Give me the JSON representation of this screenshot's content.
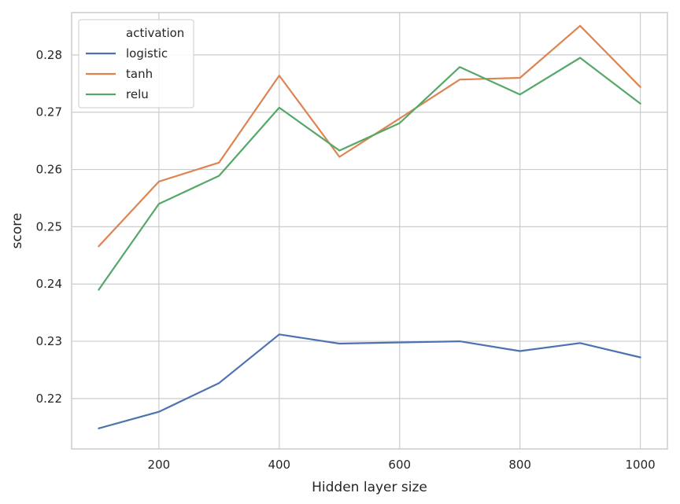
{
  "chart_data": {
    "type": "line",
    "xlabel": "Hidden layer size",
    "ylabel": "score",
    "xlim": [
      55,
      1045
    ],
    "ylim": [
      0.2112,
      0.2874
    ],
    "xticks": [
      200,
      400,
      600,
      800,
      1000
    ],
    "yticks": [
      0.22,
      0.23,
      0.24,
      0.25,
      0.26,
      0.27,
      0.28
    ],
    "grid": true,
    "legend_title": "activation",
    "legend_position": "top-left",
    "x": [
      100,
      200,
      300,
      400,
      500,
      600,
      700,
      800,
      900,
      1000
    ],
    "series": [
      {
        "name": "logistic",
        "color": "#4c72b0",
        "values": [
          0.2148,
          0.2177,
          0.2227,
          0.2312,
          0.2296,
          0.2298,
          0.23,
          0.2283,
          0.2297,
          0.2272
        ]
      },
      {
        "name": "tanh",
        "color": "#dd8452",
        "values": [
          0.2466,
          0.2579,
          0.2612,
          0.2764,
          0.2622,
          0.2689,
          0.2757,
          0.276,
          0.2851,
          0.2744
        ]
      },
      {
        "name": "relu",
        "color": "#55a868",
        "values": [
          0.239,
          0.254,
          0.2589,
          0.2708,
          0.2633,
          0.2681,
          0.2779,
          0.2731,
          0.2795,
          0.2715
        ]
      }
    ]
  }
}
